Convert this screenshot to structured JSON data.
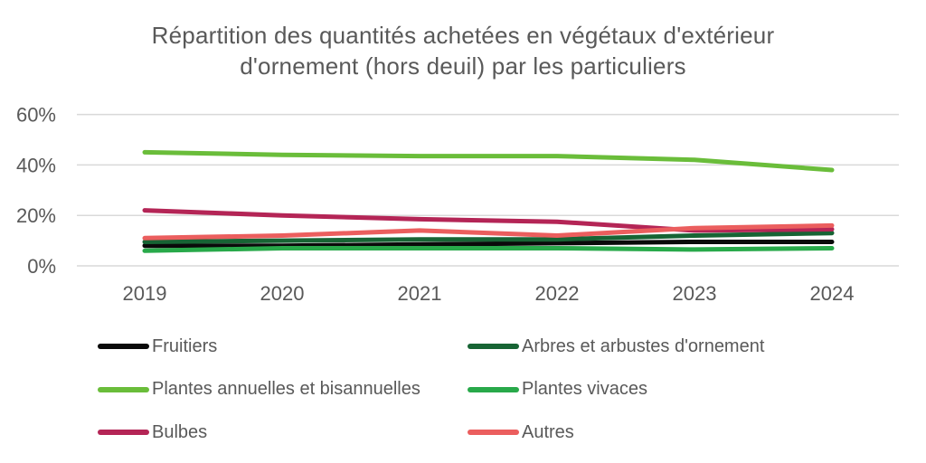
{
  "chart_data": {
    "type": "line",
    "title": "Répartition des quantités achetées en végétaux d'extérieur d'ornement (hors deuil) par les particuliers",
    "title_lines": [
      "Répartition des quantités achetées en végétaux d'extérieur",
      "d'ornement (hors deuil) par les particuliers"
    ],
    "categories": [
      "2019",
      "2020",
      "2021",
      "2022",
      "2023",
      "2024"
    ],
    "series": [
      {
        "name": "Fruitiers",
        "color": "#0a0a0a",
        "values": [
          8,
          8,
          8.5,
          9,
          9.5,
          9.5
        ]
      },
      {
        "name": "Arbres et arbustes d'ornement",
        "color": "#176434",
        "values": [
          9.5,
          10,
          10.5,
          10.5,
          12,
          13
        ]
      },
      {
        "name": "Plantes annuelles et bisannuelles",
        "color": "#6abd3a",
        "values": [
          45,
          44,
          43.5,
          43.5,
          42,
          38
        ]
      },
      {
        "name": "Plantes vivaces",
        "color": "#28a94a",
        "values": [
          6,
          7,
          7,
          7,
          6.5,
          7
        ]
      },
      {
        "name": "Bulbes",
        "color": "#b42556",
        "values": [
          22,
          20,
          18.5,
          17.5,
          14,
          14.5
        ]
      },
      {
        "name": "Autres",
        "color": "#eb5e5e",
        "values": [
          11,
          12,
          14,
          12,
          15,
          16
        ]
      }
    ],
    "xlabel": "",
    "ylabel": "",
    "ylim": [
      0,
      60
    ],
    "ytick_labels": [
      "0%",
      "20%",
      "40%",
      "60%"
    ],
    "ytick_values": [
      0,
      20,
      40,
      60
    ],
    "grid": true,
    "legend_position": "bottom",
    "legend_columns": 2
  },
  "colors": {
    "text": "#595959",
    "gridline": "#d9d9d9",
    "background": "#ffffff"
  }
}
